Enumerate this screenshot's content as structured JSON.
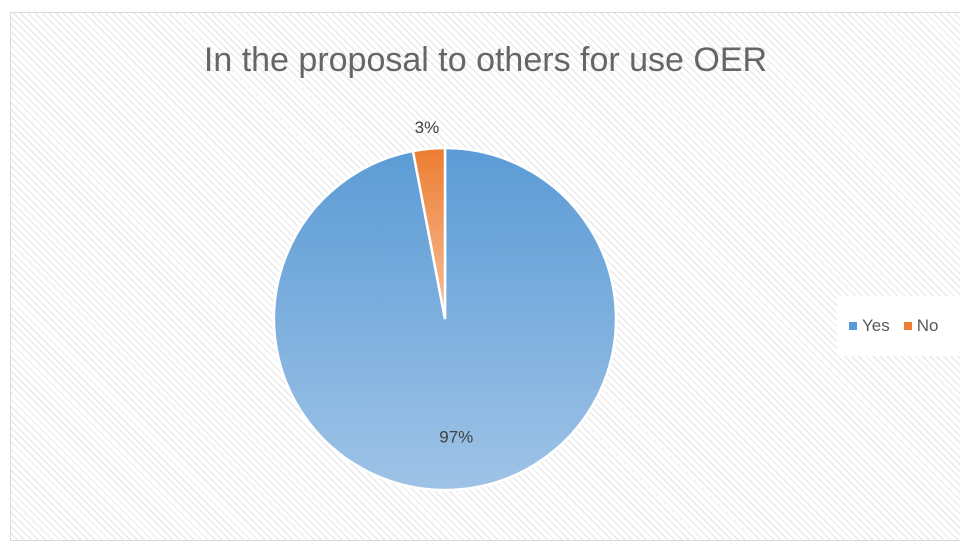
{
  "chart_data": {
    "type": "pie",
    "title": "In the proposal to others for use OER",
    "categories": [
      "Yes",
      "No"
    ],
    "values": [
      97,
      3
    ],
    "data_labels": [
      "97%",
      "3%"
    ],
    "colors": [
      "#5b9bd5",
      "#ed7d31"
    ],
    "legend_position": "right"
  }
}
